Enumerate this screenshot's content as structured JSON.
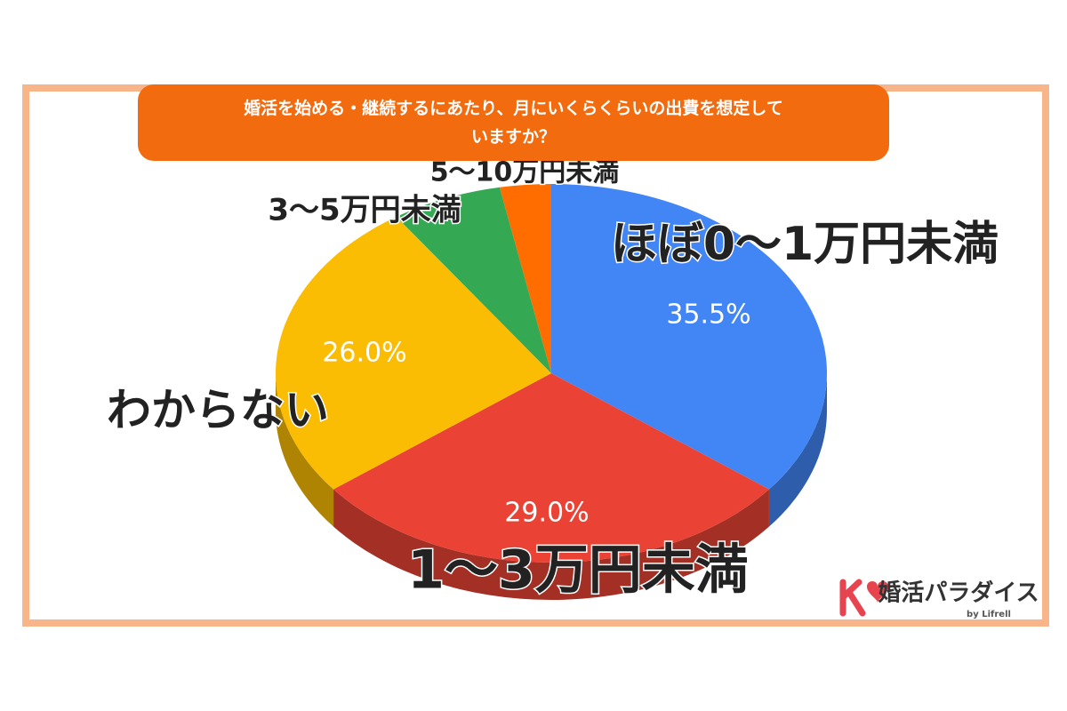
{
  "chart_data": {
    "type": "pie3d",
    "title": "婚活を始める・継続するにあたり、月にいくらくらいの出費を想定していますか？",
    "categories": [
      "ほぼ0〜1万円未満",
      "1〜3万円未満",
      "わからない",
      "3〜5万円未満",
      "5〜10万円未満"
    ],
    "values": [
      35.5,
      29.0,
      26.0,
      6.5,
      3.0
    ],
    "value_labels": [
      "35.5%",
      "29.0%",
      "26.0%",
      null,
      null
    ],
    "colors": [
      "#4285f4",
      "#ea4335",
      "#fbbc04",
      "#34a853",
      "#ff6d01"
    ]
  },
  "logo": {
    "name": "婚活パラダイス",
    "by": "by Lifrell"
  }
}
